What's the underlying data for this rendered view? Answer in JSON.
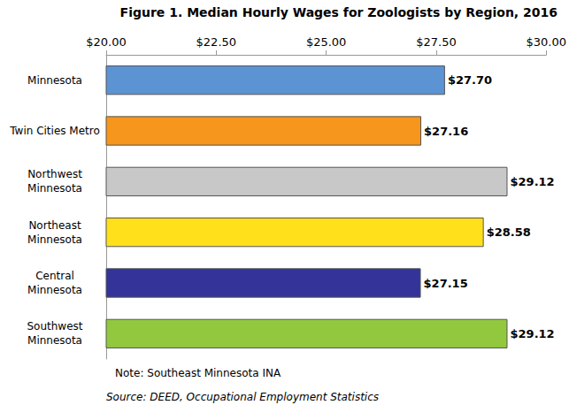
{
  "chart_data": {
    "type": "bar",
    "orientation": "horizontal",
    "title": "Figure 1. Median Hourly Wages for Zoologists by Region, 2016",
    "categories": [
      "Minnesota",
      "Twin Cities Metro",
      "Northwest\nMinnesota",
      "Northeast\nMinnesota",
      "Central\nMinnesota",
      "Southwest\nMinnesota"
    ],
    "values": [
      27.7,
      27.16,
      29.12,
      28.58,
      27.15,
      29.12
    ],
    "value_labels": [
      "$27.70",
      "$27.16",
      "$29.12",
      "$28.58",
      "$27.15",
      "$29.12"
    ],
    "colors": [
      "#5b93d3",
      "#f7961c",
      "#c8c8c8",
      "#ffe01a",
      "#333399",
      "#92c83e"
    ],
    "xlim": [
      20,
      30
    ],
    "xticks": [
      {
        "value": 20,
        "label": "$20.00"
      },
      {
        "value": 22.5,
        "label": "$22.50"
      },
      {
        "value": 25,
        "label": "$25.00"
      },
      {
        "value": 27.5,
        "label": "$27.50"
      },
      {
        "value": 30,
        "label": "$30.00"
      }
    ],
    "grid": false,
    "data_labels": true,
    "annotations": [
      "Note: Southeast Minnesota INA",
      "Source: DEED, Occupational Employment Statistics"
    ]
  }
}
